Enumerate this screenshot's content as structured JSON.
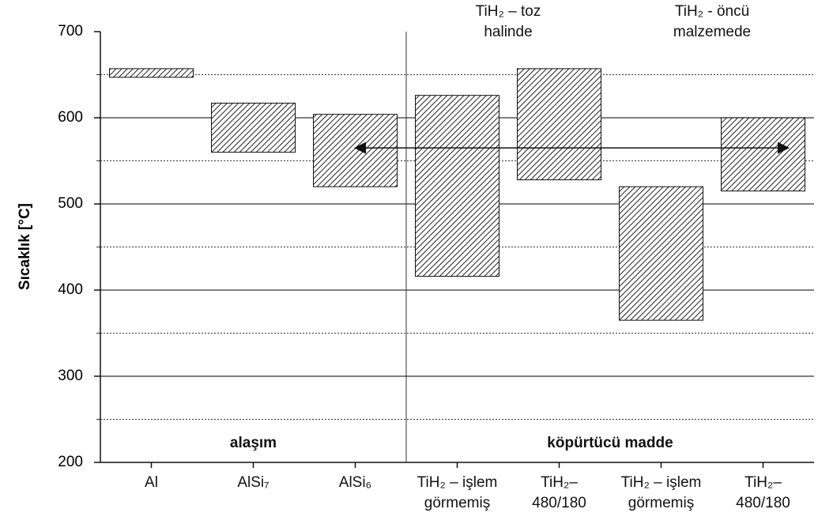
{
  "chart_data": {
    "type": "floating-bar",
    "y_label": "Sıcaklık [°C]",
    "categories": [
      "Al",
      "AlSi₇",
      "AlSi₆",
      "TiH₂ – işlem görmemiş",
      "TiH₂–480/180",
      "TiH₂ – işlem görmemiş",
      "TiH₂–480/180"
    ],
    "low": [
      647,
      560,
      520,
      416,
      528,
      365,
      515
    ],
    "high": [
      657,
      617,
      604,
      626,
      657,
      520,
      600
    ],
    "ylim": [
      200,
      700
    ],
    "yticks": [
      200,
      300,
      400,
      500,
      600,
      700
    ],
    "minor_yticks": [
      250,
      350,
      450,
      550,
      650
    ],
    "grid": true,
    "arrow_value": 565,
    "groups": [
      "alaşım",
      "köpürtücü madde"
    ],
    "group_headers": [
      "TiH₂ – toz halinde",
      "TiH₂ - öncü malzemede"
    ]
  }
}
